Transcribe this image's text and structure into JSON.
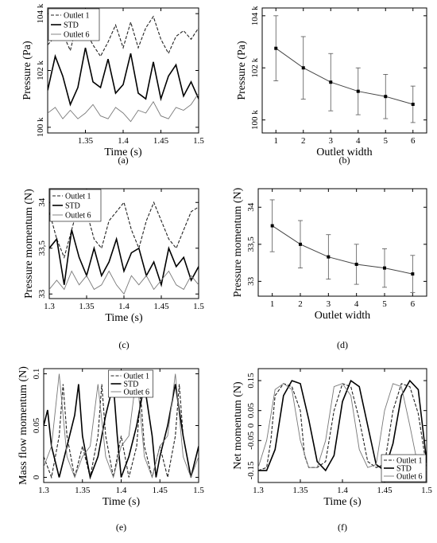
{
  "chart_data": [
    {
      "id": "a",
      "caption": "(a)",
      "type": "line",
      "xlabel": "Time (s)",
      "ylabel": "Pressure (Pa)",
      "xlim": [
        1.3,
        1.5
      ],
      "ylim": [
        99800,
        104200
      ],
      "xticks": [
        1.35,
        1.4,
        1.45,
        1.5
      ],
      "xtick_labels": [
        "1.35",
        "1.4",
        "1.45",
        "1.5"
      ],
      "yticks": [
        100000,
        102000,
        104000
      ],
      "ytick_labels": [
        "100 k",
        "102 k",
        "104 k"
      ],
      "legend": "top-left",
      "series": [
        {
          "name": "Outlet 1",
          "style": "dashed",
          "x": [
            1.3,
            1.31,
            1.32,
            1.33,
            1.34,
            1.35,
            1.36,
            1.37,
            1.38,
            1.39,
            1.4,
            1.41,
            1.42,
            1.43,
            1.44,
            1.45,
            1.46,
            1.47,
            1.48,
            1.49,
            1.5
          ],
          "y": [
            102900,
            103200,
            103300,
            102700,
            103800,
            103400,
            102900,
            102500,
            103000,
            103600,
            102800,
            103700,
            102800,
            103500,
            103900,
            103100,
            102600,
            103200,
            103400,
            103100,
            103500
          ]
        },
        {
          "name": "STD",
          "style": "solid",
          "x": [
            1.3,
            1.31,
            1.32,
            1.33,
            1.34,
            1.35,
            1.36,
            1.37,
            1.38,
            1.39,
            1.4,
            1.41,
            1.42,
            1.43,
            1.44,
            1.45,
            1.46,
            1.47,
            1.48,
            1.49,
            1.5
          ],
          "y": [
            101300,
            102500,
            101800,
            100800,
            101400,
            102800,
            101600,
            101400,
            102400,
            101200,
            101500,
            102600,
            101200,
            101000,
            102300,
            101000,
            101800,
            102200,
            101100,
            101600,
            101000
          ]
        },
        {
          "name": "Outlet 6",
          "style": "solid-thin",
          "x": [
            1.3,
            1.31,
            1.32,
            1.33,
            1.34,
            1.35,
            1.36,
            1.37,
            1.38,
            1.39,
            1.4,
            1.41,
            1.42,
            1.43,
            1.44,
            1.45,
            1.46,
            1.47,
            1.48,
            1.49,
            1.5
          ],
          "y": [
            100500,
            100700,
            100300,
            100600,
            100300,
            100500,
            100800,
            100400,
            100300,
            100700,
            100500,
            100200,
            100600,
            100500,
            100900,
            100400,
            100300,
            100700,
            100600,
            100800,
            101200
          ]
        }
      ]
    },
    {
      "id": "b",
      "caption": "(b)",
      "type": "line",
      "xlabel": "Outlet width",
      "ylabel": "Pressure (Pa)",
      "xlim": [
        0.5,
        6.5
      ],
      "ylim": [
        99500,
        104300
      ],
      "xticks": [
        1,
        2,
        3,
        4,
        5,
        6
      ],
      "xtick_labels": [
        "1",
        "2",
        "3",
        "4",
        "5",
        "6"
      ],
      "yticks": [
        100000,
        102000,
        104000
      ],
      "ytick_labels": [
        "100 k",
        "102 k",
        "104 k"
      ],
      "legend": "none",
      "series": [
        {
          "x": [
            1,
            2,
            3,
            4,
            5,
            6
          ],
          "y": [
            102750,
            102000,
            101450,
            101100,
            100900,
            100600
          ],
          "error": [
            1250,
            1200,
            1100,
            900,
            850,
            700
          ]
        }
      ]
    },
    {
      "id": "c",
      "caption": "(c)",
      "type": "line",
      "xlabel": "Time (s)",
      "ylabel": "Pressure momentum (N)",
      "xlim": [
        1.3,
        1.5
      ],
      "ylim": [
        32.95,
        34.15
      ],
      "xticks": [
        1.3,
        1.35,
        1.4,
        1.45,
        1.5
      ],
      "xtick_labels": [
        "1.3",
        "1.35",
        "1.4",
        "1.45",
        "1.5"
      ],
      "yticks": [
        33,
        33.5,
        34
      ],
      "ytick_labels": [
        "33",
        "33,5",
        "34"
      ],
      "legend": "top-left",
      "series": [
        {
          "name": "Outlet 1",
          "style": "dashed",
          "x": [
            1.3,
            1.31,
            1.32,
            1.33,
            1.34,
            1.35,
            1.36,
            1.37,
            1.38,
            1.39,
            1.4,
            1.41,
            1.42,
            1.43,
            1.44,
            1.45,
            1.46,
            1.47,
            1.48,
            1.49,
            1.5
          ],
          "y": [
            33.9,
            33.6,
            33.4,
            33.7,
            34.0,
            33.9,
            33.6,
            33.5,
            33.8,
            33.9,
            34.0,
            33.7,
            33.5,
            33.8,
            34.0,
            33.8,
            33.6,
            33.5,
            33.7,
            33.9,
            33.95
          ]
        },
        {
          "name": "STD",
          "style": "solid",
          "x": [
            1.3,
            1.31,
            1.32,
            1.33,
            1.34,
            1.35,
            1.36,
            1.37,
            1.38,
            1.39,
            1.4,
            1.41,
            1.42,
            1.43,
            1.44,
            1.45,
            1.46,
            1.47,
            1.48,
            1.49,
            1.5
          ],
          "y": [
            33.5,
            33.6,
            33.1,
            33.7,
            33.4,
            33.2,
            33.5,
            33.2,
            33.35,
            33.6,
            33.25,
            33.45,
            33.5,
            33.2,
            33.35,
            33.1,
            33.5,
            33.3,
            33.4,
            33.15,
            33.3
          ]
        },
        {
          "name": "Outlet 6",
          "style": "solid-thin",
          "x": [
            1.3,
            1.31,
            1.32,
            1.33,
            1.34,
            1.35,
            1.36,
            1.37,
            1.38,
            1.39,
            1.4,
            1.41,
            1.42,
            1.43,
            1.44,
            1.45,
            1.46,
            1.47,
            1.48,
            1.49,
            1.5
          ],
          "y": [
            33.05,
            33.15,
            33.05,
            33.25,
            33.1,
            33.2,
            33.05,
            33.1,
            33.25,
            33.1,
            33.0,
            33.2,
            33.1,
            33.2,
            33.05,
            33.15,
            33.25,
            33.1,
            33.05,
            33.2,
            33.1
          ]
        }
      ]
    },
    {
      "id": "d",
      "caption": "(d)",
      "type": "line",
      "xlabel": "Outlet width",
      "ylabel": "Pressure momentum (N)",
      "xlim": [
        0.5,
        6.5
      ],
      "ylim": [
        32.8,
        34.25
      ],
      "xticks": [
        1,
        2,
        3,
        4,
        5,
        6
      ],
      "xtick_labels": [
        "1",
        "2",
        "3",
        "4",
        "5",
        "6"
      ],
      "yticks": [
        33,
        33.5,
        34
      ],
      "ytick_labels": [
        "33",
        "33,5",
        "34"
      ],
      "legend": "none",
      "series": [
        {
          "x": [
            1,
            2,
            3,
            4,
            5,
            6
          ],
          "y": [
            33.75,
            33.5,
            33.33,
            33.23,
            33.18,
            33.1
          ],
          "error": [
            0.35,
            0.32,
            0.3,
            0.27,
            0.26,
            0.25
          ]
        }
      ]
    },
    {
      "id": "e",
      "caption": "(e)",
      "type": "line",
      "xlabel": "Time (s)",
      "ylabel": "Mass flow momentum (N)",
      "xlim": [
        1.3,
        1.5
      ],
      "ylim": [
        -0.005,
        0.105
      ],
      "xticks": [
        1.3,
        1.35,
        1.4,
        1.45,
        1.5
      ],
      "xtick_labels": [
        "1.3",
        "1.35",
        "1.4",
        "1.45",
        "1.5"
      ],
      "yticks": [
        0,
        0.05,
        0.1
      ],
      "ytick_labels": [
        "0",
        "0.05",
        "0.1"
      ],
      "legend": "top-center",
      "series": [
        {
          "name": "Outlet 1",
          "style": "dashed",
          "x": [
            1.3,
            1.31,
            1.32,
            1.325,
            1.33,
            1.34,
            1.35,
            1.36,
            1.37,
            1.375,
            1.38,
            1.39,
            1.4,
            1.41,
            1.42,
            1.425,
            1.43,
            1.44,
            1.45,
            1.46,
            1.47,
            1.475,
            1.48,
            1.49,
            1.5
          ],
          "y": [
            0.02,
            0.0,
            0.04,
            0.09,
            0.04,
            0.0,
            0.03,
            0.0,
            0.04,
            0.09,
            0.04,
            0.0,
            0.04,
            0.0,
            0.03,
            0.08,
            0.03,
            0.0,
            0.03,
            0.0,
            0.04,
            0.09,
            0.04,
            0.0,
            0.03
          ]
        },
        {
          "name": "STD",
          "style": "solid",
          "x": [
            1.3,
            1.305,
            1.31,
            1.32,
            1.33,
            1.34,
            1.345,
            1.35,
            1.36,
            1.37,
            1.38,
            1.39,
            1.395,
            1.4,
            1.41,
            1.42,
            1.43,
            1.44,
            1.445,
            1.45,
            1.46,
            1.47,
            1.48,
            1.49,
            1.5
          ],
          "y": [
            0.05,
            0.065,
            0.03,
            0.0,
            0.03,
            0.06,
            0.09,
            0.04,
            0.0,
            0.02,
            0.06,
            0.09,
            0.04,
            0.0,
            0.02,
            0.05,
            0.09,
            0.04,
            0.0,
            0.02,
            0.05,
            0.09,
            0.04,
            0.0,
            0.03
          ]
        },
        {
          "name": "Outlet 6",
          "style": "solid-thin",
          "x": [
            1.3,
            1.31,
            1.32,
            1.33,
            1.34,
            1.35,
            1.36,
            1.37,
            1.38,
            1.39,
            1.4,
            1.41,
            1.42,
            1.43,
            1.44,
            1.45,
            1.46,
            1.47,
            1.48,
            1.49,
            1.5
          ],
          "y": [
            0.01,
            0.03,
            0.1,
            0.02,
            0.0,
            0.02,
            0.03,
            0.09,
            0.02,
            0.0,
            0.03,
            0.04,
            0.1,
            0.02,
            0.0,
            0.03,
            0.04,
            0.1,
            0.02,
            0.0,
            0.02
          ]
        }
      ]
    },
    {
      "id": "f",
      "caption": "(f)",
      "type": "line",
      "xlabel": "Time (s)",
      "ylabel": "Net momentum (N)",
      "xlim": [
        1.3,
        1.5
      ],
      "ylim": [
        -0.19,
        0.19
      ],
      "xticks": [
        1.3,
        1.35,
        1.4,
        1.45,
        1.5
      ],
      "xtick_labels": [
        "1.3",
        "1.35",
        "1.4",
        "1.45",
        "1.5"
      ],
      "yticks": [
        -0.15,
        -0.05,
        0,
        0.05,
        0.15
      ],
      "ytick_labels": [
        "-0.15",
        "-0.05",
        "0",
        "0.05",
        "0.15"
      ],
      "legend": "bottom-right",
      "series": [
        {
          "name": "Outlet 1",
          "style": "dashed",
          "x": [
            1.3,
            1.31,
            1.315,
            1.32,
            1.33,
            1.34,
            1.35,
            1.355,
            1.36,
            1.37,
            1.38,
            1.39,
            1.4,
            1.41,
            1.42,
            1.43,
            1.44,
            1.45,
            1.46,
            1.47,
            1.48,
            1.49,
            1.5
          ],
          "y": [
            -0.15,
            -0.14,
            -0.05,
            0.1,
            0.14,
            0.13,
            0.05,
            -0.1,
            -0.14,
            -0.14,
            -0.12,
            0.05,
            0.14,
            0.13,
            0.02,
            -0.12,
            -0.14,
            -0.13,
            0.05,
            0.14,
            0.13,
            0.04,
            -0.14
          ]
        },
        {
          "name": "STD",
          "style": "solid",
          "x": [
            1.3,
            1.31,
            1.32,
            1.33,
            1.34,
            1.35,
            1.36,
            1.37,
            1.38,
            1.39,
            1.4,
            1.41,
            1.42,
            1.43,
            1.44,
            1.45,
            1.46,
            1.47,
            1.48,
            1.49,
            1.5
          ],
          "y": [
            -0.15,
            -0.15,
            -0.08,
            0.1,
            0.15,
            0.14,
            0.02,
            -0.12,
            -0.15,
            -0.1,
            0.08,
            0.15,
            0.13,
            0.0,
            -0.13,
            -0.15,
            -0.06,
            0.1,
            0.15,
            0.12,
            -0.12
          ]
        },
        {
          "name": "Outlet 6",
          "style": "solid-thin",
          "x": [
            1.3,
            1.31,
            1.32,
            1.33,
            1.34,
            1.35,
            1.36,
            1.37,
            1.38,
            1.39,
            1.4,
            1.41,
            1.42,
            1.43,
            1.44,
            1.45,
            1.46,
            1.47,
            1.48,
            1.49,
            1.5
          ],
          "y": [
            -0.14,
            -0.05,
            0.12,
            0.14,
            0.12,
            -0.05,
            -0.14,
            -0.14,
            -0.05,
            0.13,
            0.14,
            0.1,
            -0.08,
            -0.14,
            -0.13,
            0.05,
            0.14,
            0.13,
            0.0,
            -0.14,
            -0.15
          ]
        }
      ]
    }
  ]
}
